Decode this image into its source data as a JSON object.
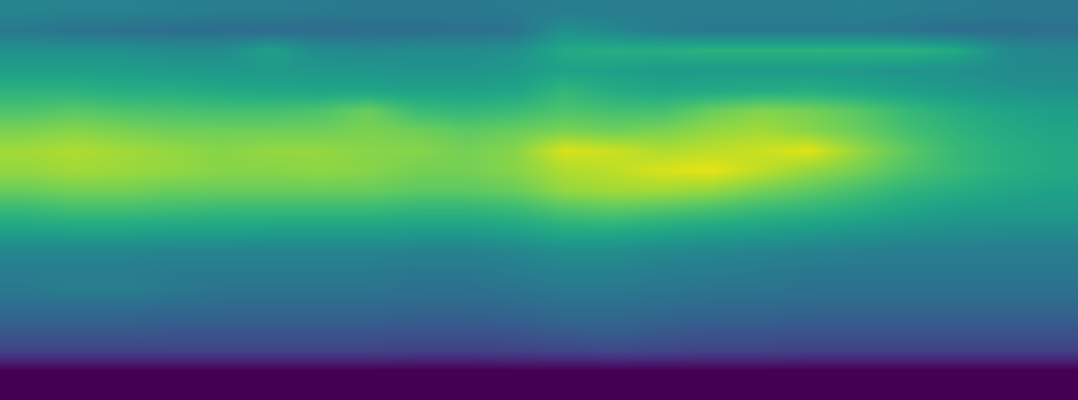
{
  "chart_data": {
    "type": "heatmap",
    "color": "viridis",
    "tick_labels": false,
    "xlim": [
      -0.5,
      21.5
    ],
    "ylim": [
      19.5,
      -0.5
    ],
    "zlim": [
      0,
      1
    ],
    "cells": [
      [
        0.45,
        0.44,
        0.44,
        0.43,
        0.42,
        0.42,
        0.41,
        0.4,
        0.4,
        0.4,
        0.41,
        0.42,
        0.42,
        0.42,
        0.42,
        0.42,
        0.42,
        0.43,
        0.42,
        0.41,
        0.4,
        0.4
      ],
      [
        0.4,
        0.38,
        0.37,
        0.36,
        0.36,
        0.35,
        0.35,
        0.36,
        0.36,
        0.37,
        0.38,
        0.5,
        0.46,
        0.42,
        0.4,
        0.4,
        0.4,
        0.4,
        0.38,
        0.36,
        0.36,
        0.37
      ],
      [
        0.5,
        0.5,
        0.5,
        0.48,
        0.48,
        0.56,
        0.48,
        0.47,
        0.48,
        0.48,
        0.5,
        0.6,
        0.62,
        0.62,
        0.64,
        0.64,
        0.64,
        0.64,
        0.64,
        0.6,
        0.48,
        0.46
      ],
      [
        0.56,
        0.56,
        0.55,
        0.54,
        0.53,
        0.53,
        0.53,
        0.52,
        0.51,
        0.51,
        0.53,
        0.57,
        0.56,
        0.54,
        0.54,
        0.54,
        0.54,
        0.53,
        0.51,
        0.5,
        0.48,
        0.47
      ],
      [
        0.64,
        0.64,
        0.62,
        0.62,
        0.6,
        0.59,
        0.58,
        0.58,
        0.57,
        0.57,
        0.58,
        0.66,
        0.61,
        0.59,
        0.6,
        0.61,
        0.62,
        0.59,
        0.56,
        0.53,
        0.51,
        0.5
      ],
      [
        0.72,
        0.74,
        0.72,
        0.71,
        0.7,
        0.7,
        0.72,
        0.77,
        0.68,
        0.66,
        0.68,
        0.72,
        0.7,
        0.7,
        0.77,
        0.81,
        0.79,
        0.74,
        0.67,
        0.62,
        0.58,
        0.56
      ],
      [
        0.8,
        0.82,
        0.8,
        0.78,
        0.78,
        0.78,
        0.78,
        0.8,
        0.78,
        0.75,
        0.77,
        0.8,
        0.78,
        0.8,
        0.84,
        0.86,
        0.82,
        0.77,
        0.7,
        0.65,
        0.61,
        0.58
      ],
      [
        0.86,
        0.88,
        0.86,
        0.84,
        0.82,
        0.84,
        0.84,
        0.82,
        0.82,
        0.79,
        0.82,
        0.94,
        0.92,
        0.88,
        0.9,
        0.92,
        0.95,
        0.84,
        0.75,
        0.67,
        0.63,
        0.6
      ],
      [
        0.84,
        0.86,
        0.85,
        0.84,
        0.82,
        0.82,
        0.83,
        0.82,
        0.79,
        0.79,
        0.82,
        0.88,
        0.9,
        0.94,
        0.96,
        0.9,
        0.84,
        0.79,
        0.72,
        0.67,
        0.63,
        0.6
      ],
      [
        0.77,
        0.79,
        0.79,
        0.77,
        0.77,
        0.77,
        0.77,
        0.77,
        0.75,
        0.75,
        0.77,
        0.84,
        0.86,
        0.86,
        0.84,
        0.79,
        0.75,
        0.7,
        0.65,
        0.62,
        0.59,
        0.57
      ],
      [
        0.67,
        0.69,
        0.69,
        0.68,
        0.67,
        0.67,
        0.67,
        0.67,
        0.65,
        0.65,
        0.67,
        0.72,
        0.74,
        0.72,
        0.7,
        0.67,
        0.65,
        0.62,
        0.58,
        0.55,
        0.54,
        0.54
      ],
      [
        0.57,
        0.58,
        0.58,
        0.57,
        0.57,
        0.56,
        0.56,
        0.56,
        0.55,
        0.55,
        0.57,
        0.61,
        0.61,
        0.59,
        0.57,
        0.56,
        0.54,
        0.52,
        0.5,
        0.49,
        0.48,
        0.48
      ],
      [
        0.46,
        0.46,
        0.46,
        0.45,
        0.45,
        0.45,
        0.45,
        0.45,
        0.44,
        0.44,
        0.46,
        0.49,
        0.49,
        0.47,
        0.46,
        0.45,
        0.44,
        0.43,
        0.42,
        0.42,
        0.42,
        0.42
      ],
      [
        0.42,
        0.42,
        0.42,
        0.41,
        0.41,
        0.41,
        0.41,
        0.41,
        0.4,
        0.4,
        0.42,
        0.44,
        0.44,
        0.42,
        0.42,
        0.41,
        0.4,
        0.4,
        0.4,
        0.4,
        0.4,
        0.4
      ],
      [
        0.4,
        0.42,
        0.42,
        0.4,
        0.38,
        0.38,
        0.38,
        0.38,
        0.37,
        0.37,
        0.38,
        0.4,
        0.4,
        0.39,
        0.38,
        0.38,
        0.37,
        0.37,
        0.37,
        0.37,
        0.37,
        0.37
      ],
      [
        0.34,
        0.34,
        0.34,
        0.33,
        0.33,
        0.33,
        0.33,
        0.33,
        0.32,
        0.32,
        0.33,
        0.35,
        0.35,
        0.34,
        0.33,
        0.33,
        0.32,
        0.32,
        0.32,
        0.32,
        0.32,
        0.32
      ],
      [
        0.28,
        0.28,
        0.28,
        0.27,
        0.27,
        0.27,
        0.27,
        0.27,
        0.26,
        0.26,
        0.27,
        0.29,
        0.3,
        0.28,
        0.27,
        0.27,
        0.26,
        0.26,
        0.26,
        0.26,
        0.26,
        0.26
      ],
      [
        0.2,
        0.2,
        0.2,
        0.2,
        0.2,
        0.2,
        0.2,
        0.2,
        0.19,
        0.19,
        0.2,
        0.21,
        0.22,
        0.21,
        0.2,
        0.2,
        0.19,
        0.19,
        0.19,
        0.19,
        0.19,
        0.19
      ],
      [
        0,
        0,
        0,
        0,
        0,
        0,
        0,
        0,
        0,
        0,
        0,
        0,
        0,
        0,
        0,
        0,
        0,
        0,
        0,
        0,
        0,
        0
      ],
      [
        0,
        0,
        0,
        0,
        0,
        0,
        0,
        0,
        0,
        0,
        0,
        0,
        0,
        0,
        0,
        0,
        0,
        0,
        0,
        0,
        0,
        0
      ]
    ]
  }
}
